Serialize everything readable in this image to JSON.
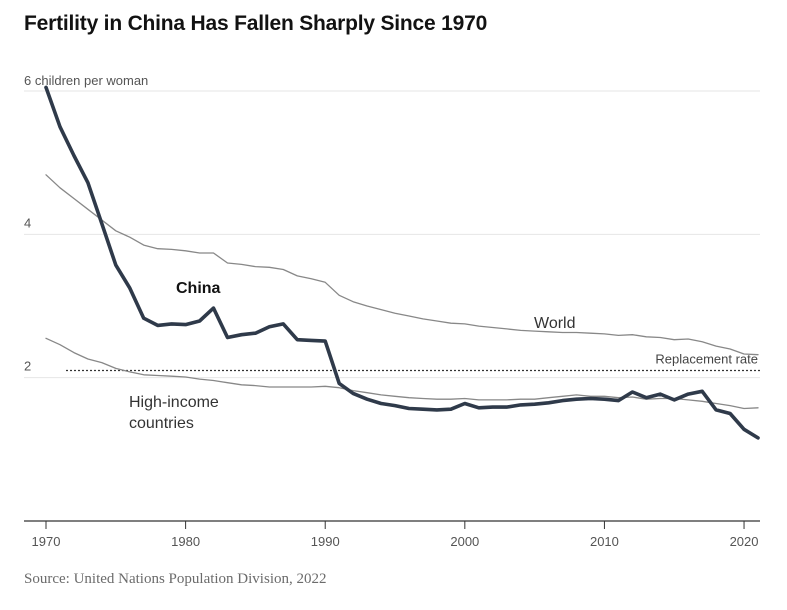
{
  "title": "Fertility in China Has Fallen Sharply Since 1970",
  "source": "Source: United Nations Population Division, 2022",
  "chart_data": {
    "type": "line",
    "title": "Fertility in China Has Fallen Sharply Since 1970",
    "ylabel": "6 children per woman",
    "xlabel": "",
    "xlim": [
      1970,
      2021
    ],
    "ylim": [
      0,
      6
    ],
    "y_ticks": [
      {
        "value": 6,
        "label": "6"
      },
      {
        "value": 4,
        "label": "4"
      },
      {
        "value": 2,
        "label": "2"
      }
    ],
    "x_ticks": [
      {
        "value": 1970,
        "label": "1970"
      },
      {
        "value": 1980,
        "label": "1980"
      },
      {
        "value": 1990,
        "label": "1990"
      },
      {
        "value": 2000,
        "label": "2000"
      },
      {
        "value": 2010,
        "label": "2010"
      },
      {
        "value": 2020,
        "label": "2020"
      }
    ],
    "reference_line": {
      "name": "Replacement rate",
      "value": 2.1
    },
    "series": [
      {
        "name": "China",
        "label": "China",
        "emphasis": true,
        "color": "#2f3a4a",
        "x": [
          1970,
          1971,
          1972,
          1973,
          1974,
          1975,
          1976,
          1977,
          1978,
          1979,
          1980,
          1981,
          1982,
          1983,
          1984,
          1985,
          1986,
          1987,
          1988,
          1989,
          1990,
          1991,
          1992,
          1993,
          1994,
          1995,
          1996,
          1997,
          1998,
          1999,
          2000,
          2001,
          2002,
          2003,
          2004,
          2005,
          2006,
          2007,
          2008,
          2009,
          2010,
          2011,
          2012,
          2013,
          2014,
          2015,
          2016,
          2017,
          2018,
          2019,
          2020,
          2021
        ],
        "values": [
          6.05,
          5.5,
          5.1,
          4.72,
          4.15,
          3.57,
          3.25,
          2.83,
          2.73,
          2.75,
          2.74,
          2.79,
          2.97,
          2.56,
          2.6,
          2.62,
          2.71,
          2.75,
          2.53,
          2.52,
          2.51,
          1.92,
          1.78,
          1.7,
          1.64,
          1.61,
          1.57,
          1.56,
          1.55,
          1.56,
          1.64,
          1.58,
          1.59,
          1.59,
          1.62,
          1.63,
          1.65,
          1.68,
          1.7,
          1.71,
          1.7,
          1.68,
          1.8,
          1.72,
          1.77,
          1.69,
          1.77,
          1.81,
          1.55,
          1.5,
          1.28,
          1.16
        ]
      },
      {
        "name": "World",
        "label": "World",
        "color": "#888888",
        "x": [
          1970,
          1971,
          1972,
          1973,
          1974,
          1975,
          1976,
          1977,
          1978,
          1979,
          1980,
          1981,
          1982,
          1983,
          1984,
          1985,
          1986,
          1987,
          1988,
          1989,
          1990,
          1991,
          1992,
          1993,
          1994,
          1995,
          1996,
          1997,
          1998,
          1999,
          2000,
          2001,
          2002,
          2003,
          2004,
          2005,
          2006,
          2007,
          2008,
          2009,
          2010,
          2011,
          2012,
          2013,
          2014,
          2015,
          2016,
          2017,
          2018,
          2019,
          2020,
          2021
        ],
        "values": [
          4.83,
          4.65,
          4.5,
          4.35,
          4.2,
          4.05,
          3.96,
          3.85,
          3.8,
          3.79,
          3.77,
          3.74,
          3.74,
          3.6,
          3.58,
          3.55,
          3.54,
          3.51,
          3.42,
          3.38,
          3.33,
          3.15,
          3.06,
          3.0,
          2.95,
          2.9,
          2.86,
          2.82,
          2.79,
          2.76,
          2.75,
          2.72,
          2.7,
          2.68,
          2.66,
          2.65,
          2.64,
          2.63,
          2.63,
          2.62,
          2.61,
          2.59,
          2.6,
          2.57,
          2.56,
          2.53,
          2.54,
          2.5,
          2.44,
          2.4,
          2.33,
          2.32
        ]
      },
      {
        "name": "High-income countries",
        "label": "High-income\ncountries",
        "label_lines": [
          "High-income",
          "countries"
        ],
        "color": "#888888",
        "x": [
          1970,
          1971,
          1972,
          1973,
          1974,
          1975,
          1976,
          1977,
          1978,
          1979,
          1980,
          1981,
          1982,
          1983,
          1984,
          1985,
          1986,
          1987,
          1988,
          1989,
          1990,
          1991,
          1992,
          1993,
          1994,
          1995,
          1996,
          1997,
          1998,
          1999,
          2000,
          2001,
          2002,
          2003,
          2004,
          2005,
          2006,
          2007,
          2008,
          2009,
          2010,
          2011,
          2012,
          2013,
          2014,
          2015,
          2016,
          2017,
          2018,
          2019,
          2020,
          2021
        ],
        "values": [
          2.55,
          2.46,
          2.35,
          2.26,
          2.21,
          2.13,
          2.08,
          2.04,
          2.03,
          2.02,
          2.01,
          1.98,
          1.96,
          1.93,
          1.9,
          1.89,
          1.87,
          1.87,
          1.87,
          1.87,
          1.88,
          1.86,
          1.82,
          1.79,
          1.76,
          1.74,
          1.72,
          1.71,
          1.7,
          1.7,
          1.71,
          1.69,
          1.69,
          1.69,
          1.7,
          1.7,
          1.72,
          1.74,
          1.76,
          1.74,
          1.74,
          1.72,
          1.73,
          1.7,
          1.71,
          1.71,
          1.69,
          1.67,
          1.64,
          1.61,
          1.57,
          1.58
        ]
      }
    ]
  }
}
